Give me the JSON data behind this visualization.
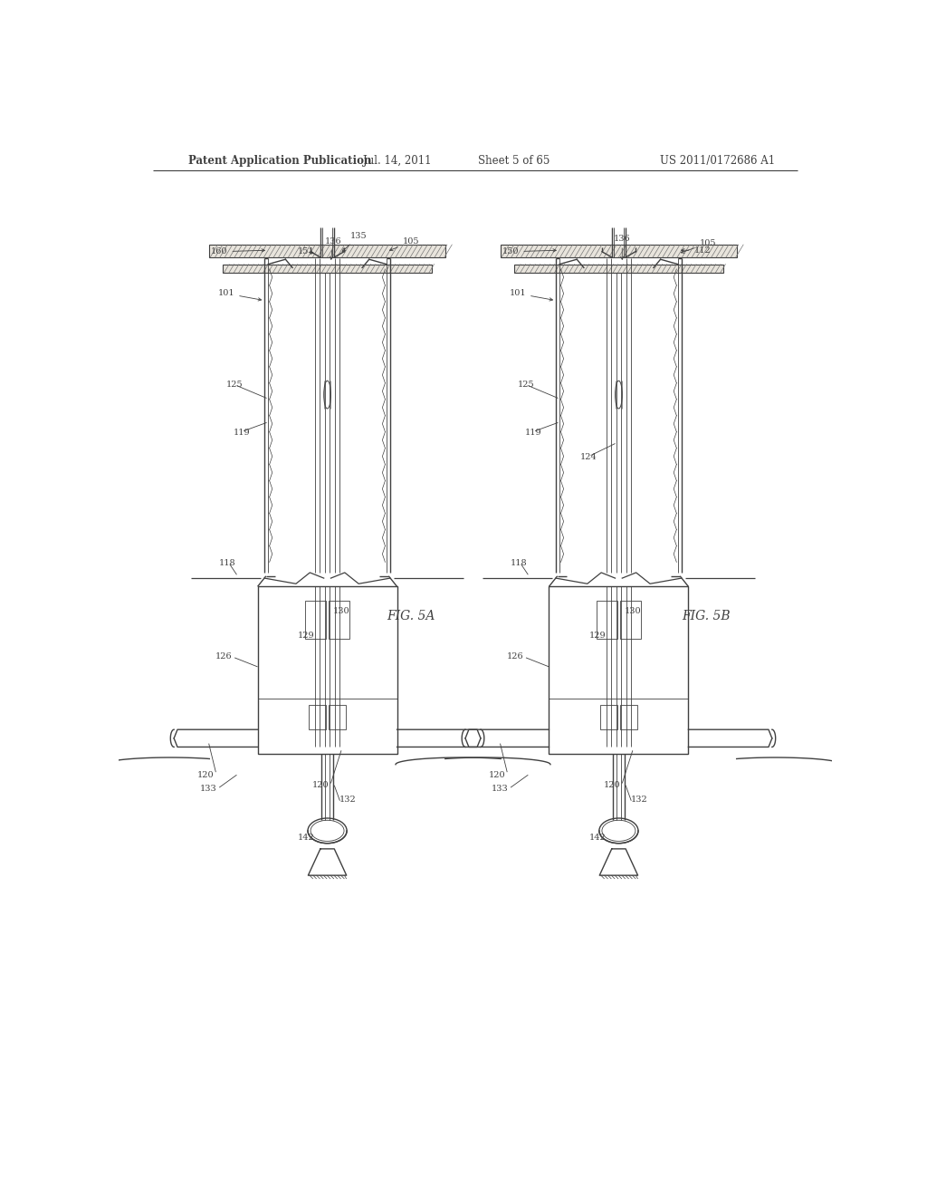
{
  "bg_color": "#ffffff",
  "header_text": "Patent Application Publication",
  "header_date": "Jul. 14, 2011",
  "header_sheet": "Sheet 5 of 65",
  "header_patent": "US 2011/0172686 A1",
  "fig5a_label": "FIG. 5A",
  "fig5b_label": "FIG. 5B",
  "line_color": "#404040",
  "label_color": "#404040",
  "hatch_color": "#888888"
}
